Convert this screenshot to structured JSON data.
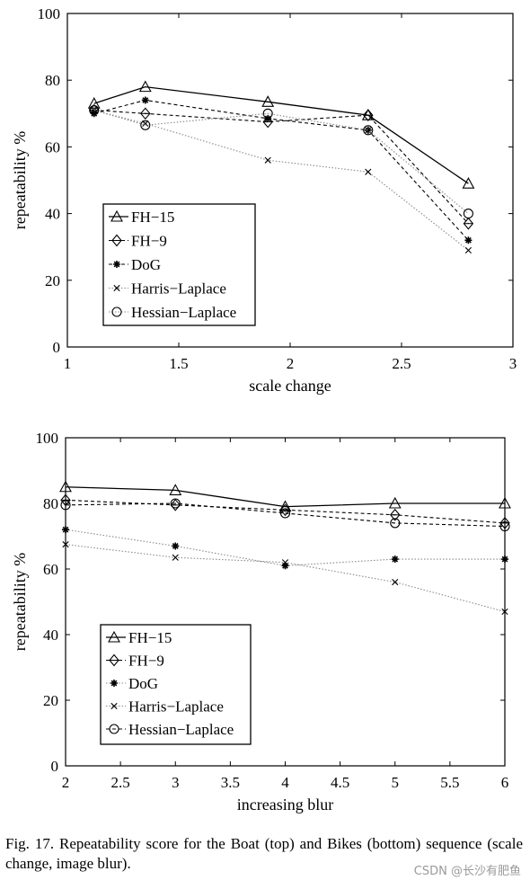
{
  "caption": "Fig. 17. Repeatability score for the Boat (top) and Bikes (bottom) sequence (scale change, image blur).",
  "watermark": "CSDN @长沙有肥鱼",
  "chart_data": [
    {
      "type": "line",
      "xlabel": "scale change",
      "ylabel": "repeatability %",
      "xlim": [
        1,
        3
      ],
      "ylim": [
        0,
        100
      ],
      "xticks": [
        "1",
        "1.5",
        "2",
        "2.5",
        "3"
      ],
      "yticks": [
        "0",
        "20",
        "40",
        "60",
        "80",
        "100"
      ],
      "grid": false,
      "legend_position": "bottom-left",
      "series": [
        {
          "name": "FH−15",
          "marker": "triangle",
          "line": "solid",
          "x": [
            1.12,
            1.35,
            1.9,
            2.35,
            2.8
          ],
          "y": [
            73,
            78,
            73.5,
            69.5,
            49
          ]
        },
        {
          "name": "FH−9",
          "marker": "diamond",
          "line": "dashed",
          "x": [
            1.12,
            1.35,
            1.9,
            2.35,
            2.8
          ],
          "y": [
            71,
            70,
            67.5,
            69.5,
            37
          ]
        },
        {
          "name": "DoG",
          "marker": "star",
          "line": "dashed",
          "x": [
            1.12,
            1.35,
            1.9,
            2.35,
            2.8
          ],
          "y": [
            70,
            74,
            68.5,
            65,
            32
          ]
        },
        {
          "name": "Harris−Laplace",
          "marker": "x",
          "line": "dotted",
          "x": [
            1.12,
            1.35,
            1.9,
            2.35,
            2.8
          ],
          "y": [
            71,
            67,
            56,
            52.5,
            29
          ]
        },
        {
          "name": "Hessian−Laplace",
          "marker": "circle",
          "line": "dotted",
          "x": [
            1.12,
            1.35,
            1.9,
            2.35,
            2.8
          ],
          "y": [
            71,
            66.5,
            70,
            65,
            40
          ]
        }
      ]
    },
    {
      "type": "line",
      "xlabel": "increasing blur",
      "ylabel": "repeatability %",
      "xlim": [
        2,
        6
      ],
      "ylim": [
        0,
        100
      ],
      "xticks": [
        "2",
        "2.5",
        "3",
        "3.5",
        "4",
        "4.5",
        "5",
        "5.5",
        "6"
      ],
      "yticks": [
        "0",
        "20",
        "40",
        "60",
        "80",
        "100"
      ],
      "grid": false,
      "legend_position": "bottom-left",
      "series": [
        {
          "name": "FH−15",
          "marker": "triangle",
          "line": "solid",
          "x": [
            2,
            3,
            4,
            5,
            6
          ],
          "y": [
            85,
            84,
            79,
            80,
            80
          ]
        },
        {
          "name": "FH−9",
          "marker": "diamond",
          "line": "dashed",
          "x": [
            2,
            3,
            4,
            5,
            6
          ],
          "y": [
            81,
            79.5,
            78,
            76.5,
            74
          ]
        },
        {
          "name": "DoG",
          "marker": "star",
          "line": "dotted",
          "x": [
            2,
            3,
            4,
            5,
            6
          ],
          "y": [
            72,
            67,
            61,
            63,
            63
          ]
        },
        {
          "name": "Harris−Laplace",
          "marker": "x",
          "line": "dotted",
          "x": [
            2,
            3,
            4,
            5,
            6
          ],
          "y": [
            67.5,
            63.5,
            62,
            56,
            47
          ]
        },
        {
          "name": "Hessian−Laplace",
          "marker": "circle",
          "line": "dashed",
          "x": [
            2,
            3,
            4,
            5,
            6
          ],
          "y": [
            79.5,
            80,
            77,
            74,
            73
          ]
        }
      ]
    }
  ]
}
